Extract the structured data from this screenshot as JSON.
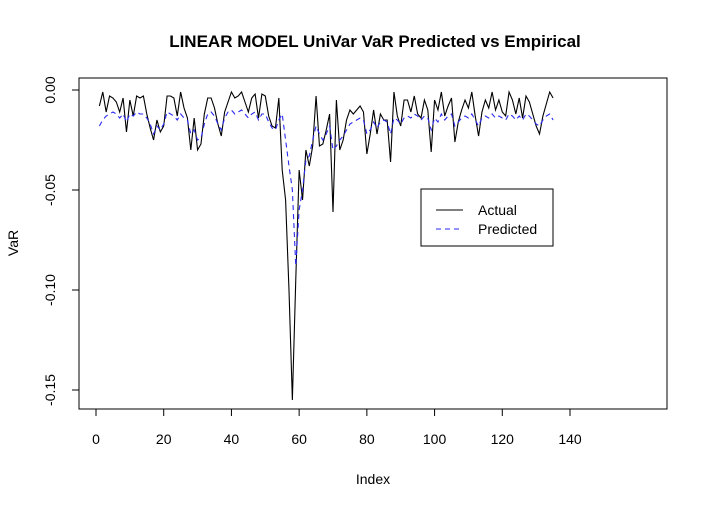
{
  "chart_data": {
    "type": "line",
    "title": "LINEAR MODEL UniVar VaR Predicted vs Empirical",
    "xlabel": "Index",
    "ylabel": "VaR",
    "xlim": [
      0,
      140
    ],
    "ylim": [
      -0.155,
      0.0
    ],
    "x_ticks": [
      0,
      20,
      40,
      60,
      80,
      100,
      120,
      140
    ],
    "y_ticks": [
      0.0,
      -0.05,
      -0.1,
      -0.15
    ],
    "x_tick_labels": [
      "0",
      "20",
      "40",
      "60",
      "80",
      "100",
      "120",
      "140"
    ],
    "y_tick_labels": [
      "0.00",
      "-0.05",
      "-0.10",
      "-0.15"
    ],
    "grid": false,
    "legend_position": "center-right",
    "series": [
      {
        "name": "Actual",
        "color": "#000000",
        "style": "solid",
        "x": [
          1,
          2,
          3,
          4,
          5,
          6,
          7,
          8,
          9,
          10,
          11,
          12,
          13,
          14,
          15,
          16,
          17,
          18,
          19,
          20,
          21,
          22,
          23,
          24,
          25,
          26,
          27,
          28,
          29,
          30,
          31,
          32,
          33,
          34,
          35,
          36,
          37,
          38,
          39,
          40,
          41,
          42,
          43,
          44,
          45,
          46,
          47,
          48,
          49,
          50,
          51,
          52,
          53,
          54,
          55,
          56,
          57,
          58,
          59,
          60,
          61,
          62,
          63,
          64,
          65,
          66,
          67,
          68,
          69,
          70,
          71,
          72,
          73,
          74,
          75,
          76,
          77,
          78,
          79,
          80,
          81,
          82,
          83,
          84,
          85,
          86,
          87,
          88,
          89,
          90,
          91,
          92,
          93,
          94,
          95,
          96,
          97,
          98,
          99,
          100,
          101,
          102,
          103,
          104,
          105,
          106,
          107,
          108,
          109,
          110,
          111,
          112,
          113,
          114,
          115,
          116,
          117,
          118,
          119,
          120,
          121,
          122,
          123,
          124,
          125,
          126,
          127,
          128,
          129,
          130,
          131,
          132,
          133,
          134,
          135
        ],
        "values": [
          -0.008,
          -0.001,
          -0.011,
          -0.003,
          -0.004,
          -0.006,
          -0.011,
          -0.004,
          -0.021,
          -0.005,
          -0.013,
          -0.003,
          -0.004,
          -0.003,
          -0.012,
          -0.019,
          -0.025,
          -0.015,
          -0.021,
          -0.018,
          -0.003,
          -0.003,
          -0.004,
          -0.013,
          -0.001,
          -0.009,
          -0.014,
          -0.03,
          -0.014,
          -0.03,
          -0.027,
          -0.012,
          -0.004,
          -0.004,
          -0.009,
          -0.017,
          -0.023,
          -0.011,
          -0.006,
          -0.001,
          -0.004,
          -0.003,
          -0.001,
          -0.006,
          -0.011,
          -0.004,
          -0.002,
          -0.014,
          -0.002,
          -0.003,
          -0.013,
          -0.018,
          -0.019,
          -0.004,
          -0.04,
          -0.055,
          -0.1,
          -0.155,
          -0.095,
          -0.04,
          -0.055,
          -0.03,
          -0.038,
          -0.028,
          -0.003,
          -0.028,
          -0.027,
          -0.02,
          -0.012,
          -0.061,
          -0.005,
          -0.03,
          -0.025,
          -0.015,
          -0.01,
          -0.012,
          -0.01,
          -0.008,
          -0.011,
          -0.032,
          -0.022,
          -0.01,
          -0.022,
          -0.012,
          -0.015,
          -0.015,
          -0.036,
          -0.001,
          -0.013,
          -0.018,
          -0.005,
          -0.005,
          -0.011,
          -0.003,
          -0.012,
          -0.014,
          -0.005,
          -0.01,
          -0.031,
          -0.005,
          -0.01,
          -0.001,
          -0.013,
          -0.008,
          -0.004,
          -0.026,
          -0.016,
          -0.01,
          -0.005,
          -0.009,
          -0.001,
          -0.013,
          -0.023,
          -0.011,
          -0.005,
          -0.009,
          -0.001,
          -0.01,
          -0.005,
          -0.011,
          -0.013,
          -0.001,
          -0.005,
          -0.012,
          -0.004,
          -0.014,
          -0.003,
          -0.006,
          -0.012,
          -0.018,
          -0.022,
          -0.013,
          -0.007,
          -0.001,
          -0.004
        ]
      },
      {
        "name": "Predicted",
        "color": "#2a2af0",
        "style": "dashed",
        "x": [
          1,
          2,
          3,
          4,
          5,
          6,
          7,
          8,
          9,
          10,
          11,
          12,
          13,
          14,
          15,
          16,
          17,
          18,
          19,
          20,
          21,
          22,
          23,
          24,
          25,
          26,
          27,
          28,
          29,
          30,
          31,
          32,
          33,
          34,
          35,
          36,
          37,
          38,
          39,
          40,
          41,
          42,
          43,
          44,
          45,
          46,
          47,
          48,
          49,
          50,
          51,
          52,
          53,
          54,
          55,
          56,
          57,
          58,
          59,
          60,
          61,
          62,
          63,
          64,
          65,
          66,
          67,
          68,
          69,
          70,
          71,
          72,
          73,
          74,
          75,
          76,
          77,
          78,
          79,
          80,
          81,
          82,
          83,
          84,
          85,
          86,
          87,
          88,
          89,
          90,
          91,
          92,
          93,
          94,
          95,
          96,
          97,
          98,
          99,
          100,
          101,
          102,
          103,
          104,
          105,
          106,
          107,
          108,
          109,
          110,
          111,
          112,
          113,
          114,
          115,
          116,
          117,
          118,
          119,
          120,
          121,
          122,
          123,
          124,
          125,
          126,
          127,
          128,
          129,
          130,
          131,
          132,
          133,
          134,
          135
        ],
        "values": [
          -0.018,
          -0.015,
          -0.013,
          -0.012,
          -0.011,
          -0.012,
          -0.014,
          -0.012,
          -0.016,
          -0.012,
          -0.013,
          -0.011,
          -0.012,
          -0.012,
          -0.014,
          -0.017,
          -0.022,
          -0.018,
          -0.02,
          -0.017,
          -0.011,
          -0.012,
          -0.013,
          -0.015,
          -0.012,
          -0.014,
          -0.015,
          -0.022,
          -0.02,
          -0.025,
          -0.024,
          -0.017,
          -0.012,
          -0.011,
          -0.013,
          -0.017,
          -0.02,
          -0.014,
          -0.011,
          -0.01,
          -0.012,
          -0.011,
          -0.01,
          -0.012,
          -0.014,
          -0.012,
          -0.011,
          -0.015,
          -0.012,
          -0.012,
          -0.016,
          -0.019,
          -0.02,
          -0.015,
          -0.012,
          -0.025,
          -0.038,
          -0.05,
          -0.088,
          -0.06,
          -0.05,
          -0.035,
          -0.033,
          -0.025,
          -0.018,
          -0.022,
          -0.025,
          -0.022,
          -0.018,
          -0.03,
          -0.028,
          -0.025,
          -0.023,
          -0.02,
          -0.017,
          -0.016,
          -0.015,
          -0.014,
          -0.015,
          -0.022,
          -0.02,
          -0.016,
          -0.019,
          -0.016,
          -0.015,
          -0.016,
          -0.022,
          -0.014,
          -0.015,
          -0.017,
          -0.014,
          -0.013,
          -0.014,
          -0.012,
          -0.013,
          -0.015,
          -0.013,
          -0.014,
          -0.02,
          -0.014,
          -0.016,
          -0.012,
          -0.015,
          -0.013,
          -0.012,
          -0.018,
          -0.016,
          -0.014,
          -0.013,
          -0.014,
          -0.012,
          -0.015,
          -0.018,
          -0.014,
          -0.013,
          -0.014,
          -0.012,
          -0.014,
          -0.013,
          -0.014,
          -0.015,
          -0.012,
          -0.013,
          -0.015,
          -0.013,
          -0.015,
          -0.012,
          -0.013,
          -0.015,
          -0.017,
          -0.018,
          -0.015,
          -0.013,
          -0.012,
          -0.015
        ]
      }
    ]
  }
}
